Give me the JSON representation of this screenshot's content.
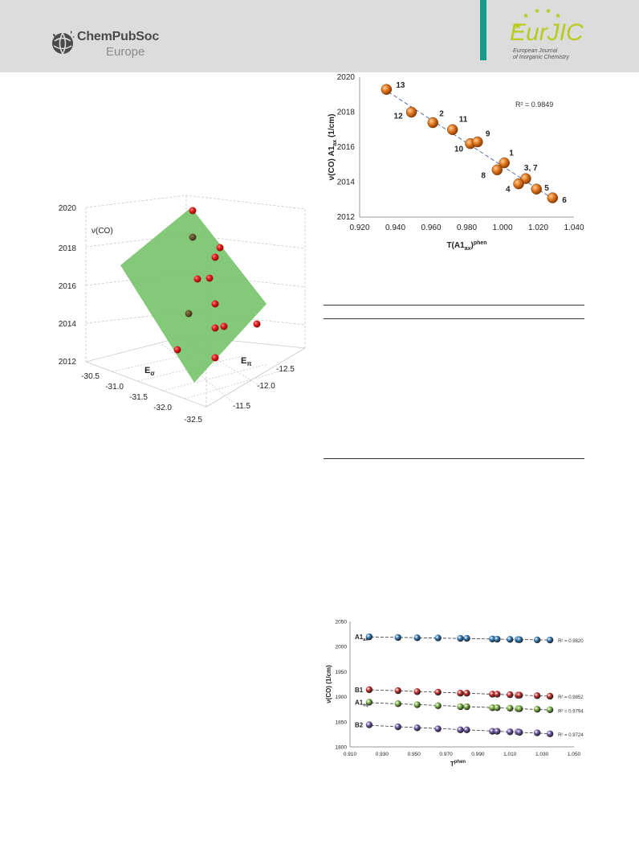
{
  "header": {
    "publisher_name": "ChemPubSoc",
    "publisher_region": "Europe",
    "journal_abbrev_a": "Eur",
    "journal_abbrev_b": "JIC",
    "journal_full_line1": "European Journal",
    "journal_full_line2": "of Inorganic Chemistry",
    "accent_color": "#179a8c",
    "logo_color": "#b7cc1e"
  },
  "figure_3d": {
    "zlabel": "ν(CO)",
    "z_ticks": [
      "2012",
      "2014",
      "2016",
      "2018",
      "2020"
    ],
    "xlabel_main": "E",
    "xlabel_sub": "σ",
    "x_ticks": [
      "-30.5",
      "-31.0",
      "-31.5",
      "-32.0",
      "-32.5"
    ],
    "ylabel_main": "E",
    "ylabel_sub": "π",
    "y_ticks": [
      "-12.5",
      "-12.0",
      "-11.5"
    ],
    "plane_color": "#77c26a",
    "point_color": "#d81a1a"
  },
  "chart_data": [
    {
      "type": "scatter",
      "xlabel": "T(A1ax)phen",
      "ylabel": "ν(CO) A1ax (1/cm)",
      "xlim": [
        0.92,
        1.04
      ],
      "ylim": [
        2012,
        2020
      ],
      "x_ticks": [
        "0.920",
        "0.940",
        "0.960",
        "0.980",
        "1.000",
        "1.020",
        "1.040"
      ],
      "y_ticks": [
        "2012",
        "2014",
        "2016",
        "2018",
        "2020"
      ],
      "annotation": "R² = 0.9849",
      "point_color": "#e2781f",
      "points": [
        {
          "label": "13",
          "x": 0.935,
          "y": 2019.3
        },
        {
          "label": "12",
          "x": 0.949,
          "y": 2018.0
        },
        {
          "label": "2",
          "x": 0.961,
          "y": 2017.4
        },
        {
          "label": "11",
          "x": 0.972,
          "y": 2017.0
        },
        {
          "label": "10",
          "x": 0.982,
          "y": 2016.2
        },
        {
          "label": "9",
          "x": 0.986,
          "y": 2016.3
        },
        {
          "label": "1",
          "x": 1.001,
          "y": 2015.1
        },
        {
          "label": "8",
          "x": 0.997,
          "y": 2014.7
        },
        {
          "label": "3, 7",
          "x": 1.013,
          "y": 2014.2
        },
        {
          "label": "4",
          "x": 1.009,
          "y": 2013.9
        },
        {
          "label": "5",
          "x": 1.019,
          "y": 2013.6
        },
        {
          "label": "6",
          "x": 1.028,
          "y": 2013.1
        }
      ]
    },
    {
      "type": "scatter",
      "xlabel": "Tphen",
      "ylabel": "ν(CO) (1/cm)",
      "xlim": [
        0.91,
        1.05
      ],
      "ylim": [
        1800,
        2050
      ],
      "x_ticks": [
        "0.910",
        "0.930",
        "0.950",
        "0.970",
        "0.990",
        "1.010",
        "1.030",
        "1.050"
      ],
      "y_ticks": [
        "1800",
        "1850",
        "1900",
        "1950",
        "2000",
        "2050"
      ],
      "x": [
        0.922,
        0.94,
        0.952,
        0.965,
        0.979,
        0.983,
        0.999,
        1.002,
        1.01,
        1.015,
        1.016,
        1.027,
        1.035
      ],
      "series": [
        {
          "name": "A1ax",
          "r2": "R² = 0.9820",
          "color": "#2f78b7",
          "values": [
            2019.3,
            2018.0,
            2017.4,
            2017.0,
            2016.2,
            2016.3,
            2015.1,
            2014.7,
            2014.2,
            2013.9,
            2013.6,
            2013.2,
            2013.1
          ]
        },
        {
          "name": "B1",
          "r2": "R² = 0.9852",
          "color": "#c62a2a",
          "values": [
            1914,
            1912,
            1910,
            1909,
            1907,
            1907,
            1905,
            1905,
            1904,
            1903,
            1903,
            1902,
            1901
          ]
        },
        {
          "name": "A1eq",
          "r2": "R² = 0.9794",
          "color": "#79b040",
          "values": [
            1889,
            1886,
            1884,
            1882,
            1880,
            1880,
            1878,
            1878,
            1877,
            1876,
            1876,
            1875,
            1874
          ]
        },
        {
          "name": "B2",
          "r2": "R² = 0.9724",
          "color": "#6a55a6",
          "values": [
            1844,
            1840,
            1838,
            1836,
            1834,
            1834,
            1831,
            1831,
            1830,
            1830,
            1829,
            1828,
            1826
          ]
        }
      ]
    }
  ]
}
